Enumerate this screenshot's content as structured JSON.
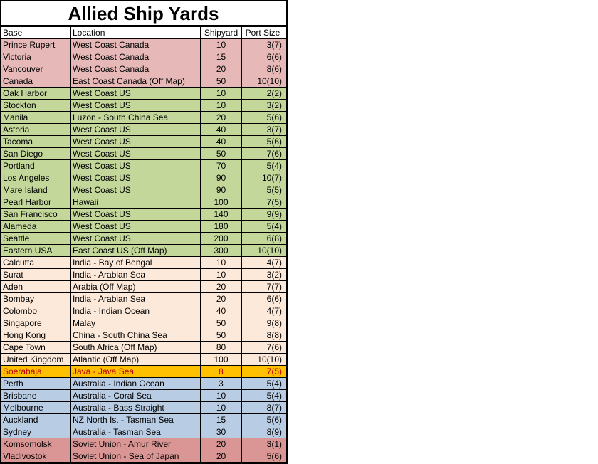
{
  "title": "Allied Ship Yards",
  "headers": [
    "Base",
    "Location",
    "Shipyard",
    "Port Size"
  ],
  "group_colors": {
    "canada": "#e6b9b8",
    "us": "#c4d79b",
    "asia": "#fde9d9",
    "java": "#ffc000",
    "australia": "#b8cce4",
    "soviet": "#da9694"
  },
  "rows": [
    {
      "base": "Prince Rupert",
      "location": "West Coast Canada",
      "shipyard": "10",
      "port": "3(7)",
      "group": "canada"
    },
    {
      "base": "Victoria",
      "location": "West Coast Canada",
      "shipyard": "15",
      "port": "6(6)",
      "group": "canada"
    },
    {
      "base": "Vancouver",
      "location": "West Coast Canada",
      "shipyard": "20",
      "port": "8(6)",
      "group": "canada"
    },
    {
      "base": "Canada",
      "location": "East Coast Canada (Off Map)",
      "shipyard": "50",
      "port": "10(10)",
      "group": "canada"
    },
    {
      "base": "Oak Harbor",
      "location": "West Coast US",
      "shipyard": "10",
      "port": "2(2)",
      "group": "us"
    },
    {
      "base": "Stockton",
      "location": "West Coast US",
      "shipyard": "10",
      "port": "3(2)",
      "group": "us"
    },
    {
      "base": "Manila",
      "location": "Luzon - South China Sea",
      "shipyard": "20",
      "port": "5(6)",
      "group": "us"
    },
    {
      "base": "Astoria",
      "location": "West Coast US",
      "shipyard": "40",
      "port": "3(7)",
      "group": "us"
    },
    {
      "base": "Tacoma",
      "location": "West Coast US",
      "shipyard": "40",
      "port": "5(6)",
      "group": "us"
    },
    {
      "base": "San Diego",
      "location": "West Coast US",
      "shipyard": "50",
      "port": "7(6)",
      "group": "us"
    },
    {
      "base": "Portland",
      "location": "West Coast US",
      "shipyard": "70",
      "port": "5(4)",
      "group": "us"
    },
    {
      "base": "Los Angeles",
      "location": "West Coast US",
      "shipyard": "90",
      "port": "10(7)",
      "group": "us"
    },
    {
      "base": "Mare Island",
      "location": "West Coast US",
      "shipyard": "90",
      "port": "5(5)",
      "group": "us"
    },
    {
      "base": "Pearl Harbor",
      "location": "Hawaii",
      "shipyard": "100",
      "port": "7(5)",
      "group": "us"
    },
    {
      "base": "San Francisco",
      "location": "West Coast US",
      "shipyard": "140",
      "port": "9(9)",
      "group": "us"
    },
    {
      "base": "Alameda",
      "location": "West Coast US",
      "shipyard": "180",
      "port": "5(4)",
      "group": "us"
    },
    {
      "base": "Seattle",
      "location": "West Coast US",
      "shipyard": "200",
      "port": "6(8)",
      "group": "us"
    },
    {
      "base": "Eastern USA",
      "location": "East Coast US (Off Map)",
      "shipyard": "300",
      "port": "10(10)",
      "group": "us"
    },
    {
      "base": "Calcutta",
      "location": "India - Bay of Bengal",
      "shipyard": "10",
      "port": "4(7)",
      "group": "asia"
    },
    {
      "base": "Surat",
      "location": "India - Arabian Sea",
      "shipyard": "10",
      "port": "3(2)",
      "group": "asia"
    },
    {
      "base": "Aden",
      "location": "Arabia (Off Map)",
      "shipyard": "20",
      "port": "7(7)",
      "group": "asia"
    },
    {
      "base": "Bombay",
      "location": "India - Arabian Sea",
      "shipyard": "20",
      "port": "6(6)",
      "group": "asia"
    },
    {
      "base": "Colombo",
      "location": "India - Indian Ocean",
      "shipyard": "40",
      "port": "4(7)",
      "group": "asia"
    },
    {
      "base": "Singapore",
      "location": "Malay",
      "shipyard": "50",
      "port": "9(8)",
      "group": "asia"
    },
    {
      "base": "Hong Kong",
      "location": "China - South China Sea",
      "shipyard": "50",
      "port": "8(8)",
      "group": "asia"
    },
    {
      "base": "Cape Town",
      "location": "South Africa (Off Map)",
      "shipyard": "80",
      "port": "7(6)",
      "group": "asia"
    },
    {
      "base": "United Kingdom",
      "location": "Atlantic (Off Map)",
      "shipyard": "100",
      "port": "10(10)",
      "group": "asia"
    },
    {
      "base": "Soerabaja",
      "location": "Java - Java Sea",
      "shipyard": "8",
      "port": "7(5)",
      "group": "java",
      "highlight": true
    },
    {
      "base": "Perth",
      "location": "Australia - Indian Ocean",
      "shipyard": "3",
      "port": "5(4)",
      "group": "australia"
    },
    {
      "base": "Brisbane",
      "location": "Australia - Coral Sea",
      "shipyard": "10",
      "port": "5(4)",
      "group": "australia"
    },
    {
      "base": "Melbourne",
      "location": "Australia - Bass Straight",
      "shipyard": "10",
      "port": "8(7)",
      "group": "australia"
    },
    {
      "base": "Auckland",
      "location": "NZ North Is. - Tasman Sea",
      "shipyard": "15",
      "port": "5(6)",
      "group": "australia"
    },
    {
      "base": "Sydney",
      "location": "Australia - Tasman Sea",
      "shipyard": "30",
      "port": "8(9)",
      "group": "australia"
    },
    {
      "base": "Komsomolsk",
      "location": "Soviet Union - Amur River",
      "shipyard": "20",
      "port": "3(1)",
      "group": "soviet"
    },
    {
      "base": "Vladivostok",
      "location": "Soviet Union - Sea of Japan",
      "shipyard": "20",
      "port": "5(6)",
      "group": "soviet"
    }
  ]
}
